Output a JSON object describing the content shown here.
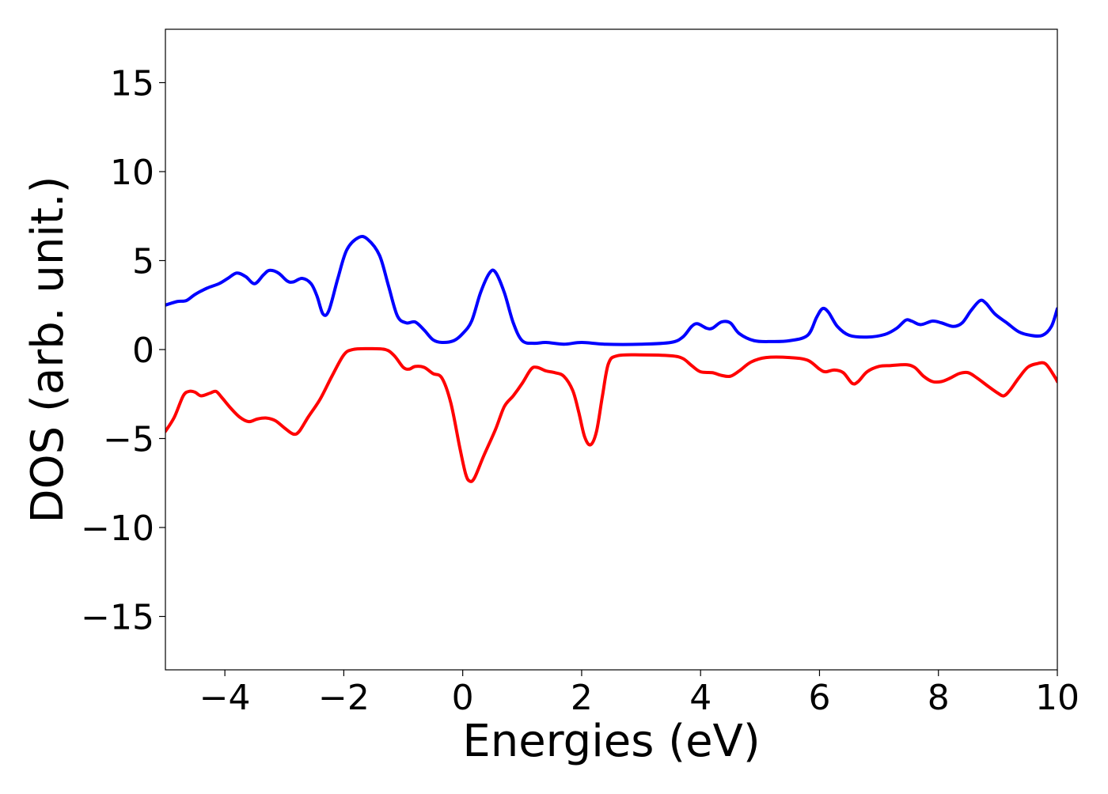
{
  "chart_data": {
    "type": "line",
    "xlabel": "Energies (eV)",
    "ylabel": "DOS (arb. unit.)",
    "xlim": [
      -5,
      10
    ],
    "ylim": [
      -18,
      18
    ],
    "grid": false,
    "x_ticks": [
      {
        "value": -4,
        "label": "−4"
      },
      {
        "value": -2,
        "label": "−2"
      },
      {
        "value": 0,
        "label": "0"
      },
      {
        "value": 2,
        "label": "2"
      },
      {
        "value": 4,
        "label": "4"
      },
      {
        "value": 6,
        "label": "6"
      },
      {
        "value": 8,
        "label": "8"
      },
      {
        "value": 10,
        "label": "10"
      }
    ],
    "y_ticks": [
      {
        "value": 15,
        "label": "15"
      },
      {
        "value": 10,
        "label": "10"
      },
      {
        "value": 5,
        "label": "5"
      },
      {
        "value": 0,
        "label": "0"
      },
      {
        "value": -5,
        "label": "−5"
      },
      {
        "value": -10,
        "label": "−10"
      },
      {
        "value": -15,
        "label": "−15"
      }
    ],
    "series": [
      {
        "color": "#0000ff",
        "points": [
          [
            -5.0,
            2.5
          ],
          [
            -4.8,
            2.7
          ],
          [
            -4.65,
            2.75
          ],
          [
            -4.5,
            3.1
          ],
          [
            -4.3,
            3.45
          ],
          [
            -4.1,
            3.7
          ],
          [
            -3.95,
            4.0
          ],
          [
            -3.8,
            4.3
          ],
          [
            -3.65,
            4.1
          ],
          [
            -3.5,
            3.7
          ],
          [
            -3.35,
            4.2
          ],
          [
            -3.25,
            4.45
          ],
          [
            -3.1,
            4.3
          ],
          [
            -2.95,
            3.85
          ],
          [
            -2.85,
            3.8
          ],
          [
            -2.7,
            4.0
          ],
          [
            -2.55,
            3.7
          ],
          [
            -2.45,
            3.0
          ],
          [
            -2.35,
            2.0
          ],
          [
            -2.25,
            2.2
          ],
          [
            -2.1,
            4.0
          ],
          [
            -1.95,
            5.6
          ],
          [
            -1.75,
            6.3
          ],
          [
            -1.6,
            6.2
          ],
          [
            -1.4,
            5.3
          ],
          [
            -1.25,
            3.6
          ],
          [
            -1.1,
            1.9
          ],
          [
            -0.95,
            1.5
          ],
          [
            -0.8,
            1.55
          ],
          [
            -0.65,
            1.1
          ],
          [
            -0.5,
            0.55
          ],
          [
            -0.35,
            0.4
          ],
          [
            -0.15,
            0.5
          ],
          [
            0.0,
            0.9
          ],
          [
            0.15,
            1.6
          ],
          [
            0.3,
            3.2
          ],
          [
            0.45,
            4.3
          ],
          [
            0.55,
            4.35
          ],
          [
            0.7,
            3.2
          ],
          [
            0.85,
            1.5
          ],
          [
            1.0,
            0.5
          ],
          [
            1.2,
            0.35
          ],
          [
            1.4,
            0.4
          ],
          [
            1.7,
            0.3
          ],
          [
            2.0,
            0.4
          ],
          [
            2.4,
            0.3
          ],
          [
            3.0,
            0.3
          ],
          [
            3.5,
            0.4
          ],
          [
            3.7,
            0.7
          ],
          [
            3.85,
            1.3
          ],
          [
            3.95,
            1.45
          ],
          [
            4.1,
            1.2
          ],
          [
            4.2,
            1.2
          ],
          [
            4.35,
            1.55
          ],
          [
            4.5,
            1.5
          ],
          [
            4.65,
            0.9
          ],
          [
            4.9,
            0.5
          ],
          [
            5.2,
            0.45
          ],
          [
            5.5,
            0.5
          ],
          [
            5.8,
            0.8
          ],
          [
            5.95,
            1.8
          ],
          [
            6.05,
            2.3
          ],
          [
            6.15,
            2.1
          ],
          [
            6.3,
            1.3
          ],
          [
            6.5,
            0.8
          ],
          [
            6.8,
            0.7
          ],
          [
            7.1,
            0.85
          ],
          [
            7.3,
            1.2
          ],
          [
            7.45,
            1.65
          ],
          [
            7.55,
            1.6
          ],
          [
            7.7,
            1.4
          ],
          [
            7.9,
            1.6
          ],
          [
            8.05,
            1.5
          ],
          [
            8.25,
            1.3
          ],
          [
            8.4,
            1.5
          ],
          [
            8.55,
            2.2
          ],
          [
            8.7,
            2.75
          ],
          [
            8.8,
            2.6
          ],
          [
            8.95,
            2.0
          ],
          [
            9.15,
            1.5
          ],
          [
            9.35,
            1.0
          ],
          [
            9.55,
            0.8
          ],
          [
            9.75,
            0.8
          ],
          [
            9.9,
            1.3
          ],
          [
            10.0,
            2.3
          ]
        ]
      },
      {
        "color": "#ff0000",
        "points": [
          [
            -5.0,
            -4.6
          ],
          [
            -4.85,
            -3.8
          ],
          [
            -4.7,
            -2.6
          ],
          [
            -4.6,
            -2.35
          ],
          [
            -4.5,
            -2.4
          ],
          [
            -4.4,
            -2.6
          ],
          [
            -4.25,
            -2.45
          ],
          [
            -4.15,
            -2.35
          ],
          [
            -4.05,
            -2.7
          ],
          [
            -3.9,
            -3.3
          ],
          [
            -3.75,
            -3.8
          ],
          [
            -3.6,
            -4.05
          ],
          [
            -3.45,
            -3.9
          ],
          [
            -3.3,
            -3.85
          ],
          [
            -3.15,
            -4.0
          ],
          [
            -3.0,
            -4.4
          ],
          [
            -2.85,
            -4.75
          ],
          [
            -2.75,
            -4.6
          ],
          [
            -2.6,
            -3.8
          ],
          [
            -2.4,
            -2.8
          ],
          [
            -2.2,
            -1.5
          ],
          [
            -2.0,
            -0.3
          ],
          [
            -1.85,
            0.0
          ],
          [
            -1.6,
            0.05
          ],
          [
            -1.3,
            0.0
          ],
          [
            -1.15,
            -0.35
          ],
          [
            -1.0,
            -1.0
          ],
          [
            -0.9,
            -1.1
          ],
          [
            -0.8,
            -0.95
          ],
          [
            -0.65,
            -1.0
          ],
          [
            -0.5,
            -1.35
          ],
          [
            -0.35,
            -1.6
          ],
          [
            -0.2,
            -3.0
          ],
          [
            -0.05,
            -5.5
          ],
          [
            0.05,
            -7.0
          ],
          [
            0.12,
            -7.4
          ],
          [
            0.2,
            -7.2
          ],
          [
            0.35,
            -6.0
          ],
          [
            0.55,
            -4.5
          ],
          [
            0.7,
            -3.2
          ],
          [
            0.85,
            -2.6
          ],
          [
            1.0,
            -1.9
          ],
          [
            1.15,
            -1.1
          ],
          [
            1.25,
            -1.0
          ],
          [
            1.4,
            -1.2
          ],
          [
            1.55,
            -1.3
          ],
          [
            1.7,
            -1.5
          ],
          [
            1.85,
            -2.3
          ],
          [
            1.95,
            -3.5
          ],
          [
            2.05,
            -4.9
          ],
          [
            2.15,
            -5.35
          ],
          [
            2.25,
            -4.6
          ],
          [
            2.35,
            -2.6
          ],
          [
            2.45,
            -0.8
          ],
          [
            2.6,
            -0.35
          ],
          [
            3.0,
            -0.3
          ],
          [
            3.5,
            -0.35
          ],
          [
            3.7,
            -0.5
          ],
          [
            3.85,
            -0.9
          ],
          [
            4.0,
            -1.25
          ],
          [
            4.2,
            -1.3
          ],
          [
            4.35,
            -1.45
          ],
          [
            4.5,
            -1.5
          ],
          [
            4.65,
            -1.2
          ],
          [
            4.85,
            -0.7
          ],
          [
            5.1,
            -0.45
          ],
          [
            5.5,
            -0.45
          ],
          [
            5.8,
            -0.6
          ],
          [
            6.0,
            -1.1
          ],
          [
            6.1,
            -1.25
          ],
          [
            6.25,
            -1.15
          ],
          [
            6.4,
            -1.3
          ],
          [
            6.55,
            -1.9
          ],
          [
            6.65,
            -1.8
          ],
          [
            6.8,
            -1.25
          ],
          [
            7.0,
            -0.95
          ],
          [
            7.2,
            -0.9
          ],
          [
            7.45,
            -0.85
          ],
          [
            7.6,
            -1.0
          ],
          [
            7.75,
            -1.5
          ],
          [
            7.9,
            -1.8
          ],
          [
            8.05,
            -1.8
          ],
          [
            8.2,
            -1.6
          ],
          [
            8.35,
            -1.35
          ],
          [
            8.5,
            -1.3
          ],
          [
            8.65,
            -1.6
          ],
          [
            8.85,
            -2.1
          ],
          [
            9.0,
            -2.45
          ],
          [
            9.1,
            -2.6
          ],
          [
            9.2,
            -2.3
          ],
          [
            9.35,
            -1.6
          ],
          [
            9.5,
            -1.0
          ],
          [
            9.65,
            -0.8
          ],
          [
            9.8,
            -0.8
          ],
          [
            9.95,
            -1.5
          ],
          [
            10.0,
            -1.8
          ]
        ]
      }
    ]
  }
}
